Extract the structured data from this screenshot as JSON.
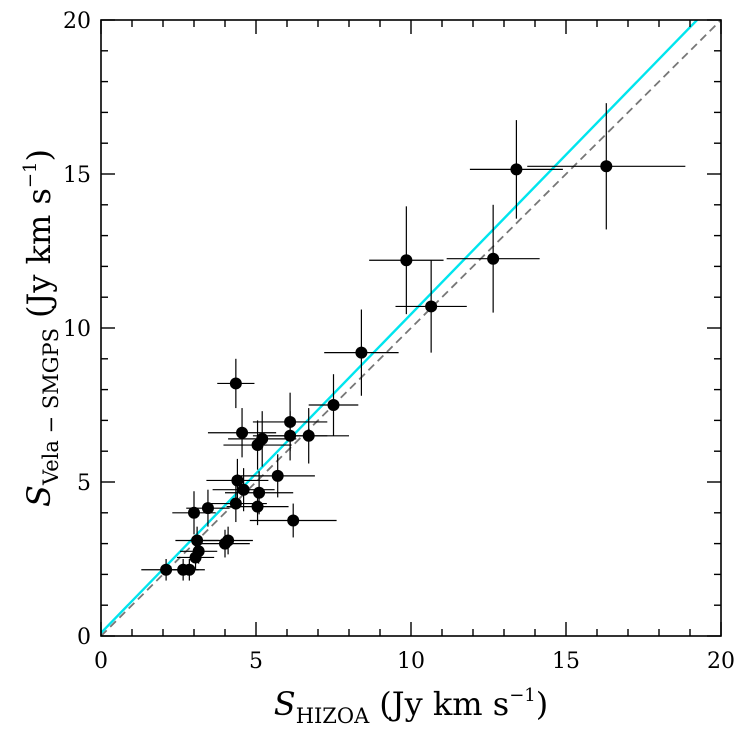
{
  "chart_data": {
    "type": "scatter",
    "title": "",
    "xlabel": {
      "symbol": "S",
      "subscript": "HIZOA",
      "unit_prefix": "(Jy km s",
      "unit_exp": "−1",
      "unit_suffix": ")"
    },
    "ylabel": {
      "symbol": "S",
      "subscript": "Vela − SMGPS",
      "unit_prefix": "(Jy km s",
      "unit_exp": "−1",
      "unit_suffix": ")"
    },
    "xlim": [
      0,
      20
    ],
    "ylim": [
      0,
      20
    ],
    "x_ticks": [
      "0",
      "5",
      "10",
      "15",
      "20"
    ],
    "y_ticks": [
      "0",
      "5",
      "10",
      "15",
      "20"
    ],
    "grid": false,
    "points": [
      {
        "x": 2.1,
        "y": 2.15,
        "xerr": 0.8,
        "yerr": 0.35
      },
      {
        "x": 2.65,
        "y": 2.15,
        "xerr": 0.5,
        "yerr": 0.35
      },
      {
        "x": 2.85,
        "y": 2.15,
        "xerr": 0.5,
        "yerr": 0.35
      },
      {
        "x": 3.05,
        "y": 2.55,
        "xerr": 0.6,
        "yerr": 0.4
      },
      {
        "x": 3.15,
        "y": 2.75,
        "xerr": 0.6,
        "yerr": 0.4
      },
      {
        "x": 3.1,
        "y": 3.1,
        "xerr": 0.7,
        "yerr": 0.45
      },
      {
        "x": 3.0,
        "y": 4.0,
        "xerr": 0.7,
        "yerr": 0.7
      },
      {
        "x": 3.45,
        "y": 4.15,
        "xerr": 0.7,
        "yerr": 0.6
      },
      {
        "x": 4.0,
        "y": 3.0,
        "xerr": 0.8,
        "yerr": 0.45
      },
      {
        "x": 4.1,
        "y": 3.1,
        "xerr": 0.8,
        "yerr": 0.45
      },
      {
        "x": 4.35,
        "y": 4.3,
        "xerr": 1.0,
        "yerr": 0.6
      },
      {
        "x": 4.4,
        "y": 5.05,
        "xerr": 1.0,
        "yerr": 0.7
      },
      {
        "x": 4.6,
        "y": 4.75,
        "xerr": 1.0,
        "yerr": 0.7
      },
      {
        "x": 4.35,
        "y": 8.2,
        "xerr": 0.6,
        "yerr": 0.8
      },
      {
        "x": 4.55,
        "y": 6.6,
        "xerr": 1.1,
        "yerr": 0.8
      },
      {
        "x": 5.05,
        "y": 4.2,
        "xerr": 1.0,
        "yerr": 0.6
      },
      {
        "x": 5.1,
        "y": 4.65,
        "xerr": 1.1,
        "yerr": 0.7
      },
      {
        "x": 5.05,
        "y": 6.2,
        "xerr": 1.1,
        "yerr": 0.8
      },
      {
        "x": 5.2,
        "y": 6.4,
        "xerr": 1.1,
        "yerr": 0.9
      },
      {
        "x": 5.7,
        "y": 5.2,
        "xerr": 1.2,
        "yerr": 0.7
      },
      {
        "x": 6.1,
        "y": 6.95,
        "xerr": 1.2,
        "yerr": 0.95
      },
      {
        "x": 6.1,
        "y": 6.5,
        "xerr": 1.2,
        "yerr": 0.8
      },
      {
        "x": 6.2,
        "y": 3.75,
        "xerr": 1.4,
        "yerr": 0.55
      },
      {
        "x": 6.7,
        "y": 6.5,
        "xerr": 1.3,
        "yerr": 0.9
      },
      {
        "x": 7.5,
        "y": 7.5,
        "xerr": 0.8,
        "yerr": 1.0
      },
      {
        "x": 8.4,
        "y": 9.2,
        "xerr": 1.2,
        "yerr": 1.4
      },
      {
        "x": 9.85,
        "y": 12.2,
        "xerr": 1.2,
        "yerr": 1.75
      },
      {
        "x": 10.65,
        "y": 10.7,
        "xerr": 1.15,
        "yerr": 1.5
      },
      {
        "x": 12.65,
        "y": 12.25,
        "xerr": 1.5,
        "yerr": 1.75
      },
      {
        "x": 13.4,
        "y": 15.15,
        "xerr": 1.5,
        "yerr": 1.6
      },
      {
        "x": 16.3,
        "y": 15.25,
        "xerr": 2.55,
        "yerr": 2.05
      }
    ],
    "lines": [
      {
        "name": "fit",
        "color": "#00e5ee",
        "style": "solid",
        "slope": 1.035,
        "intercept": 0.1
      },
      {
        "name": "one-to-one",
        "color": "#777777",
        "style": "dashed",
        "slope": 1.0,
        "intercept": 0.0
      }
    ]
  }
}
